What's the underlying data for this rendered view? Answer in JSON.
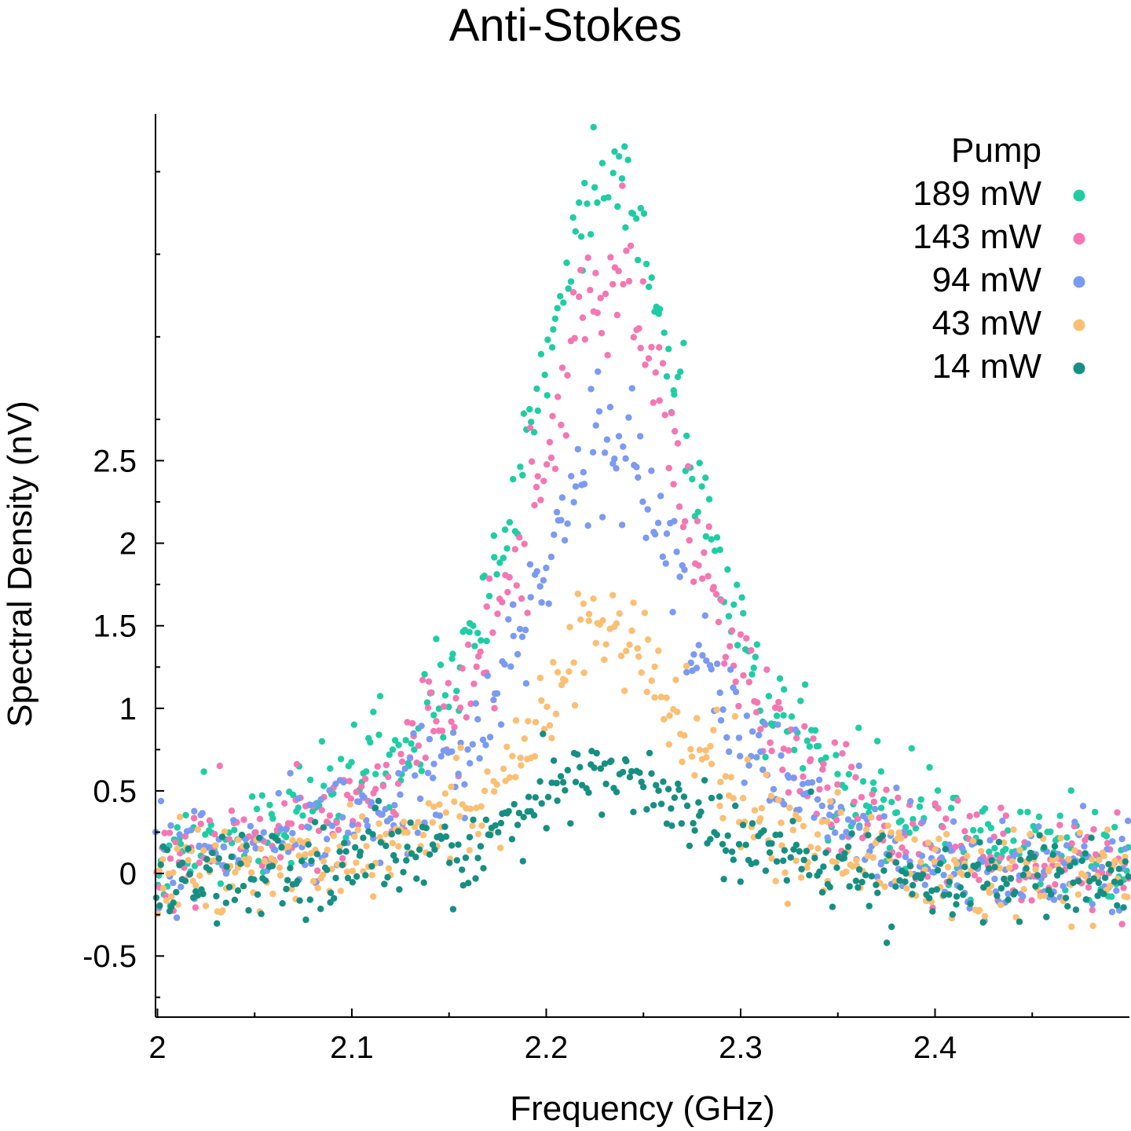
{
  "chart_data": {
    "type": "scatter",
    "title": "Anti-Stokes",
    "xlabel": "Frequency (GHz)",
    "ylabel": "Spectral Density (nV)",
    "xlim": [
      1.999,
      2.5
    ],
    "ylim": [
      -0.87,
      4.6
    ],
    "x_ticks": [
      2,
      2.1,
      2.2,
      2.3,
      2.4
    ],
    "x_tick_labels": [
      "2",
      "2.1",
      "2.2",
      "2.3",
      "2.4"
    ],
    "y_ticks": [
      -0.5,
      0,
      0.5,
      1,
      1.5,
      2,
      2.5
    ],
    "y_tick_labels": [
      "-0.5",
      "0",
      "0.5",
      "1",
      "1.5",
      "2",
      "2.5"
    ],
    "grid": false,
    "legend": {
      "title": "Pump",
      "placement": "top-right"
    },
    "series": [
      {
        "name": "189 mW",
        "color": "#1fcda4",
        "model": "lorentzian",
        "peak_x": 2.232,
        "peak_y": 4.35,
        "half_width": 0.05,
        "baseline": -0.1,
        "noise": 0.15,
        "n_points": 400
      },
      {
        "name": "143 mW",
        "color": "#f477b3",
        "model": "lorentzian",
        "peak_x": 2.232,
        "peak_y": 3.6,
        "half_width": 0.05,
        "baseline": -0.1,
        "noise": 0.15,
        "n_points": 400
      },
      {
        "name": "94 mW",
        "color": "#7b9af2",
        "model": "lorentzian",
        "peak_x": 2.232,
        "peak_y": 2.65,
        "half_width": 0.05,
        "baseline": -0.1,
        "noise": 0.15,
        "n_points": 400
      },
      {
        "name": "43 mW",
        "color": "#fbbf74",
        "model": "lorentzian",
        "peak_x": 2.232,
        "peak_y": 1.45,
        "half_width": 0.05,
        "baseline": -0.1,
        "noise": 0.15,
        "n_points": 400
      },
      {
        "name": "14 mW",
        "color": "#168f82",
        "model": "lorentzian",
        "peak_x": 2.232,
        "peak_y": 0.62,
        "half_width": 0.055,
        "baseline": -0.1,
        "noise": 0.12,
        "n_points": 400
      }
    ]
  }
}
